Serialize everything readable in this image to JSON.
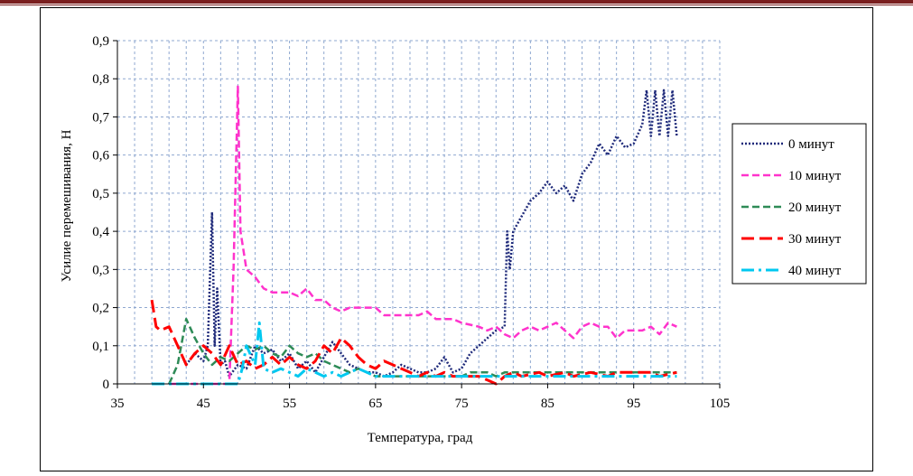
{
  "chart_data": {
    "type": "line",
    "xlabel": "Температура,  град",
    "ylabel": "Усилие перемешивания, Н",
    "xlim": [
      35,
      105
    ],
    "ylim": [
      0,
      0.9
    ],
    "x_ticks": [
      "35",
      "45",
      "55",
      "65",
      "75",
      "85",
      "95",
      "105"
    ],
    "y_ticks": [
      "0",
      "0,1",
      "0,2",
      "0,3",
      "0,4",
      "0,5",
      "0,6",
      "0,7",
      "0,8",
      "0,9"
    ],
    "grid": true,
    "legend_position": "right",
    "series": [
      {
        "name": "0 минут",
        "color": "#1f2a7a",
        "style": "dotted",
        "points": [
          [
            43,
            0.05
          ],
          [
            44,
            0.08
          ],
          [
            45,
            0.06
          ],
          [
            45.5,
            0.1
          ],
          [
            46,
            0.45
          ],
          [
            46.3,
            0.1
          ],
          [
            46.6,
            0.25
          ],
          [
            47,
            0.05
          ],
          [
            47.5,
            0.06
          ],
          [
            48,
            0.02
          ],
          [
            49,
            0.05
          ],
          [
            50,
            0.04
          ],
          [
            51,
            0.1
          ],
          [
            52,
            0.08
          ],
          [
            53,
            0.09
          ],
          [
            54,
            0.06
          ],
          [
            55,
            0.08
          ],
          [
            56,
            0.04
          ],
          [
            57,
            0.06
          ],
          [
            58,
            0.03
          ],
          [
            59,
            0.07
          ],
          [
            60,
            0.11
          ],
          [
            61,
            0.08
          ],
          [
            62,
            0.05
          ],
          [
            63,
            0.04
          ],
          [
            64,
            0.03
          ],
          [
            65,
            0.03
          ],
          [
            66,
            0.02
          ],
          [
            67,
            0.03
          ],
          [
            68,
            0.05
          ],
          [
            69,
            0.04
          ],
          [
            70,
            0.03
          ],
          [
            71,
            0.03
          ],
          [
            72,
            0.04
          ],
          [
            73,
            0.07
          ],
          [
            74,
            0.03
          ],
          [
            75,
            0.04
          ],
          [
            76,
            0.08
          ],
          [
            77,
            0.1
          ],
          [
            78,
            0.12
          ],
          [
            79,
            0.14
          ],
          [
            80,
            0.15
          ],
          [
            80.3,
            0.4
          ],
          [
            80.6,
            0.3
          ],
          [
            81,
            0.4
          ],
          [
            82,
            0.44
          ],
          [
            83,
            0.48
          ],
          [
            84,
            0.5
          ],
          [
            85,
            0.53
          ],
          [
            86,
            0.5
          ],
          [
            87,
            0.52
          ],
          [
            88,
            0.48
          ],
          [
            89,
            0.55
          ],
          [
            90,
            0.58
          ],
          [
            91,
            0.63
          ],
          [
            92,
            0.6
          ],
          [
            93,
            0.65
          ],
          [
            94,
            0.62
          ],
          [
            95,
            0.63
          ],
          [
            96,
            0.68
          ],
          [
            96.5,
            0.77
          ],
          [
            97,
            0.65
          ],
          [
            97.5,
            0.77
          ],
          [
            98,
            0.65
          ],
          [
            98.5,
            0.77
          ],
          [
            99,
            0.65
          ],
          [
            99.5,
            0.77
          ],
          [
            100,
            0.65
          ]
        ]
      },
      {
        "name": "10 минут",
        "color": "#ff33cc",
        "style": "dashed",
        "points": [
          [
            41,
            0
          ],
          [
            48,
            0
          ],
          [
            48.5,
            0.3
          ],
          [
            49,
            0.78
          ],
          [
            49.3,
            0.4
          ],
          [
            50,
            0.3
          ],
          [
            51,
            0.28
          ],
          [
            52,
            0.25
          ],
          [
            53,
            0.24
          ],
          [
            55,
            0.24
          ],
          [
            56,
            0.23
          ],
          [
            57,
            0.25
          ],
          [
            58,
            0.22
          ],
          [
            59,
            0.22
          ],
          [
            60,
            0.2
          ],
          [
            61,
            0.19
          ],
          [
            62,
            0.2
          ],
          [
            63,
            0.2
          ],
          [
            65,
            0.2
          ],
          [
            66,
            0.18
          ],
          [
            70,
            0.18
          ],
          [
            71,
            0.19
          ],
          [
            72,
            0.17
          ],
          [
            74,
            0.17
          ],
          [
            75,
            0.16
          ],
          [
            77,
            0.15
          ],
          [
            78,
            0.14
          ],
          [
            79,
            0.15
          ],
          [
            80,
            0.13
          ],
          [
            81,
            0.12
          ],
          [
            82,
            0.14
          ],
          [
            83,
            0.15
          ],
          [
            84,
            0.14
          ],
          [
            85,
            0.15
          ],
          [
            86,
            0.16
          ],
          [
            87,
            0.14
          ],
          [
            88,
            0.12
          ],
          [
            89,
            0.15
          ],
          [
            90,
            0.16
          ],
          [
            91,
            0.15
          ],
          [
            92,
            0.15
          ],
          [
            93,
            0.12
          ],
          [
            94,
            0.14
          ],
          [
            95,
            0.14
          ],
          [
            96,
            0.14
          ],
          [
            97,
            0.15
          ],
          [
            98,
            0.13
          ],
          [
            99,
            0.16
          ],
          [
            100,
            0.15
          ]
        ]
      },
      {
        "name": "20 минут",
        "color": "#2e8b57",
        "style": "dashed",
        "points": [
          [
            41,
            0
          ],
          [
            42,
            0.05
          ],
          [
            43,
            0.17
          ],
          [
            44,
            0.12
          ],
          [
            45,
            0.08
          ],
          [
            46,
            0.05
          ],
          [
            47,
            0.07
          ],
          [
            48,
            0.06
          ],
          [
            49,
            0.08
          ],
          [
            50,
            0.1
          ],
          [
            51,
            0.09
          ],
          [
            52,
            0.1
          ],
          [
            53,
            0.08
          ],
          [
            54,
            0.07
          ],
          [
            55,
            0.1
          ],
          [
            56,
            0.08
          ],
          [
            57,
            0.07
          ],
          [
            58,
            0.08
          ],
          [
            59,
            0.06
          ],
          [
            60,
            0.05
          ],
          [
            61,
            0.04
          ],
          [
            62,
            0.03
          ],
          [
            63,
            0.04
          ],
          [
            64,
            0.03
          ],
          [
            65,
            0.02
          ],
          [
            70,
            0.02
          ],
          [
            75,
            0.02
          ],
          [
            76,
            0.03
          ],
          [
            78,
            0.03
          ],
          [
            79,
            0.02
          ],
          [
            80,
            0.03
          ],
          [
            85,
            0.03
          ],
          [
            90,
            0.03
          ],
          [
            95,
            0.03
          ],
          [
            100,
            0.03
          ]
        ]
      },
      {
        "name": "30 минут",
        "color": "#ff0000",
        "style": "longdash",
        "points": [
          [
            39,
            0.22
          ],
          [
            39.5,
            0.15
          ],
          [
            40,
            0.14
          ],
          [
            41,
            0.15
          ],
          [
            42,
            0.1
          ],
          [
            43,
            0.05
          ],
          [
            44,
            0.08
          ],
          [
            45,
            0.1
          ],
          [
            46,
            0.08
          ],
          [
            47,
            0.05
          ],
          [
            48,
            0.1
          ],
          [
            49,
            0.05
          ],
          [
            50,
            0.06
          ],
          [
            51,
            0.04
          ],
          [
            52,
            0.05
          ],
          [
            53,
            0.07
          ],
          [
            54,
            0.05
          ],
          [
            55,
            0.07
          ],
          [
            56,
            0.05
          ],
          [
            57,
            0.04
          ],
          [
            58,
            0.06
          ],
          [
            59,
            0.1
          ],
          [
            60,
            0.08
          ],
          [
            61,
            0.12
          ],
          [
            62,
            0.1
          ],
          [
            63,
            0.07
          ],
          [
            64,
            0.05
          ],
          [
            65,
            0.04
          ],
          [
            66,
            0.06
          ],
          [
            67,
            0.05
          ],
          [
            68,
            0.04
          ],
          [
            69,
            0.03
          ],
          [
            70,
            0.02
          ],
          [
            71,
            0.03
          ],
          [
            72,
            0.02
          ],
          [
            73,
            0.03
          ],
          [
            74,
            0.02
          ],
          [
            75,
            0.02
          ],
          [
            76,
            0.02
          ],
          [
            77,
            0.02
          ],
          [
            78,
            0.01
          ],
          [
            79,
            0
          ],
          [
            80,
            0.02
          ],
          [
            81,
            0.03
          ],
          [
            82,
            0.02
          ],
          [
            84,
            0.03
          ],
          [
            85,
            0.02
          ],
          [
            87,
            0.03
          ],
          [
            88,
            0.02
          ],
          [
            90,
            0.03
          ],
          [
            92,
            0.02
          ],
          [
            93,
            0.03
          ],
          [
            95,
            0.03
          ],
          [
            97,
            0.03
          ],
          [
            98,
            0.02
          ],
          [
            100,
            0.03
          ]
        ]
      },
      {
        "name": "40 минут",
        "color": "#00c8f0",
        "style": "dashdot",
        "points": [
          [
            39,
            0
          ],
          [
            40,
            0
          ],
          [
            49,
            0
          ],
          [
            49.5,
            0.04
          ],
          [
            50,
            0.1
          ],
          [
            51,
            0.05
          ],
          [
            51.5,
            0.16
          ],
          [
            52,
            0.04
          ],
          [
            53,
            0.03
          ],
          [
            54,
            0.04
          ],
          [
            55,
            0.03
          ],
          [
            56,
            0.02
          ],
          [
            57,
            0.04
          ],
          [
            58,
            0.03
          ],
          [
            59,
            0.02
          ],
          [
            60,
            0.03
          ],
          [
            61,
            0.02
          ],
          [
            62,
            0.03
          ],
          [
            63,
            0.04
          ],
          [
            64,
            0.03
          ],
          [
            65,
            0.02
          ],
          [
            70,
            0.02
          ],
          [
            75,
            0.02
          ],
          [
            80,
            0.02
          ],
          [
            85,
            0.02
          ],
          [
            90,
            0.02
          ],
          [
            95,
            0.02
          ],
          [
            100,
            0.02
          ]
        ]
      }
    ]
  }
}
